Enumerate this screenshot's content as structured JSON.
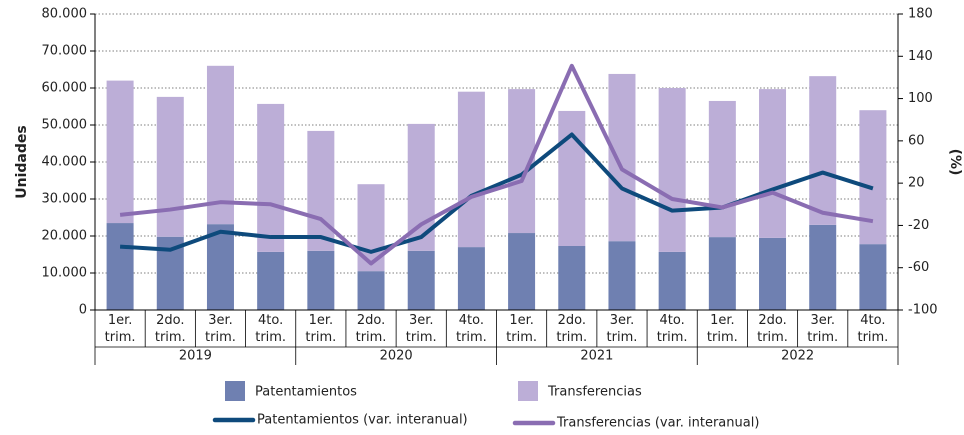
{
  "chart_data": {
    "type": "bar",
    "y_label": "Unidades",
    "y2_label": "(%)",
    "categories": [
      "1er. trim.",
      "2do. trim.",
      "3er. trim.",
      "4to. trim.",
      "1er. trim.",
      "2do. trim.",
      "3er. trim.",
      "4to. trim.",
      "1er. trim.",
      "2do. trim.",
      "3er. trim.",
      "4to. trim.",
      "1er. trim.",
      "2do. trim.",
      "3er. trim.",
      "4to. trim."
    ],
    "groups": [
      "2019",
      "2020",
      "2021",
      "2022"
    ],
    "series": [
      {
        "name": "Patentamientos",
        "type": "bar",
        "color": "#6f80b1",
        "values": [
          23500,
          19800,
          23200,
          15700,
          16000,
          10500,
          16000,
          17000,
          20800,
          17300,
          18600,
          15700,
          19700,
          19500,
          23000,
          17800
        ]
      },
      {
        "name": "Transferencias",
        "type": "bar",
        "color": "#bcaed7",
        "values": [
          38500,
          37800,
          42800,
          40000,
          32400,
          23500,
          34300,
          42000,
          38900,
          36500,
          45200,
          44300,
          36800,
          40200,
          40200,
          36200
        ]
      },
      {
        "name": "Patentamientos (var. interanual)",
        "type": "line",
        "axis": "y2",
        "color": "#0e4a7c",
        "values": [
          -40,
          -43,
          -26,
          -31,
          -31,
          -45,
          -31,
          8,
          28,
          66,
          15,
          -6,
          -3,
          14,
          30,
          15
        ]
      },
      {
        "name": "Transferencias (var. interanual)",
        "type": "line",
        "axis": "y2",
        "color": "#8a6db2",
        "values": [
          -10,
          -5,
          2,
          0,
          -14,
          -56,
          -19,
          7,
          22,
          131,
          33,
          5,
          -3,
          11,
          -8,
          -16
        ]
      }
    ],
    "ylim": [
      0,
      80000
    ],
    "yticks": [
      {
        "value": 0,
        "label": "0"
      },
      {
        "value": 10000,
        "label": "10.000"
      },
      {
        "value": 20000,
        "label": "20.000"
      },
      {
        "value": 30000,
        "label": "30.000"
      },
      {
        "value": 40000,
        "label": "40.000"
      },
      {
        "value": 50000,
        "label": "50.000"
      },
      {
        "value": 60000,
        "label": "60.000"
      },
      {
        "value": 70000,
        "label": "70.000"
      },
      {
        "value": 80000,
        "label": "80.000"
      }
    ],
    "y2lim": [
      -100,
      180
    ],
    "y2ticks": [
      -100,
      -60,
      -20,
      20,
      60,
      100,
      140,
      180
    ],
    "grid": true
  }
}
